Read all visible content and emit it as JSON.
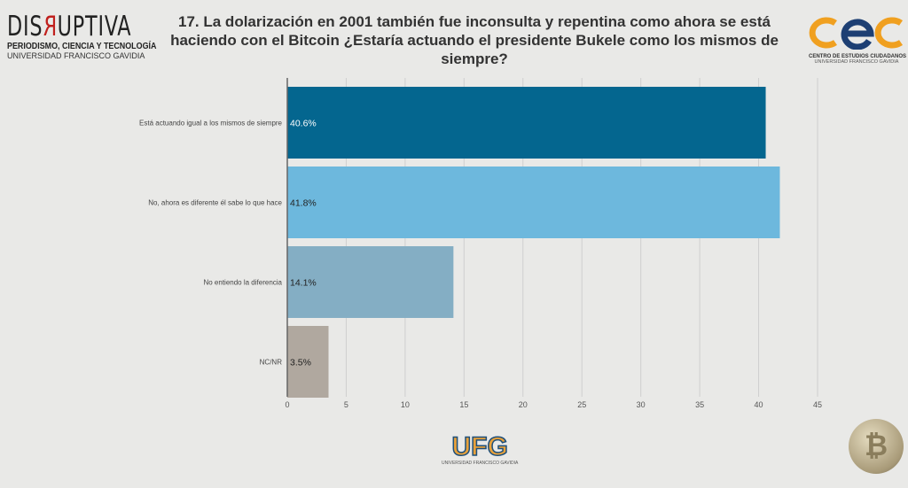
{
  "header": {
    "left_logo": {
      "name": "DISRUPTIVA",
      "line1": "PERIODISMO, CIENCIA Y TECNOLOGÍA",
      "line2": "UNIVERSIDAD FRANCISCO GAVIDIA"
    },
    "right_logo": {
      "name": "cec",
      "line1": "CENTRO DE ESTUDIOS CIUDADANOS",
      "line2": "UNIVERSIDAD FRANCISCO GAVIDIA"
    }
  },
  "footer": {
    "logo": "UFG",
    "logo_sub": "UNIVERSIDAD FRANCISCO GAVIDIA",
    "coin_symbol": "₿"
  },
  "chart_data": {
    "type": "bar",
    "orientation": "horizontal",
    "title": "17. La dolarización en 2001 también fue inconsulta y repentina como ahora se está haciendo con el Bitcoin ¿Estaría actuando el presidente Bukele como los mismos de siempre?",
    "categories": [
      "Está actuando igual a los mismos de siempre",
      "No, ahora es diferente él sabe lo que hace",
      "No entiendo la diferencia",
      "NC/NR"
    ],
    "values": [
      40.6,
      41.8,
      14.1,
      3.5
    ],
    "labels": [
      "40.6%",
      "41.8%",
      "14.1%",
      "3.5%"
    ],
    "colors": [
      "#04668f",
      "#6db8dd",
      "#84aec4",
      "#b0a89f"
    ],
    "xlim": [
      0,
      45
    ],
    "xticks": [
      0,
      5,
      10,
      15,
      20,
      25,
      30,
      35,
      40,
      45
    ],
    "grid": true,
    "xlabel": "",
    "ylabel": ""
  }
}
